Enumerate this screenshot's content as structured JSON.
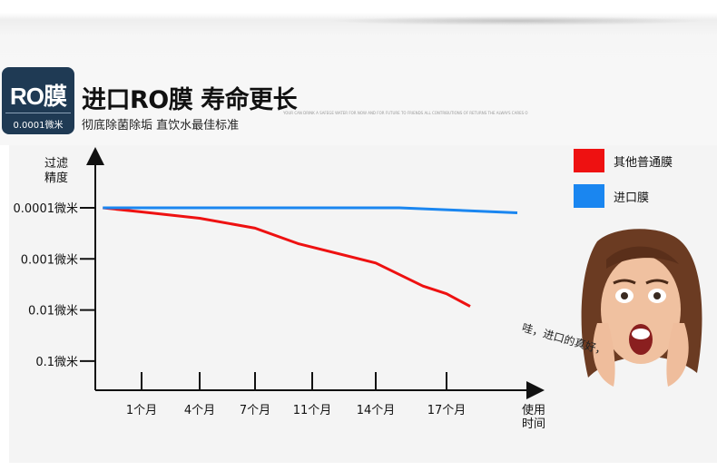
{
  "header": {
    "badge_main": "RO膜",
    "badge_sub": "0.0001微米",
    "title": "进口RO膜 寿命更长",
    "subtitle": "彻底除菌除垢 直饮水最佳标准",
    "tiny_text": "YOUR CAN DRINK A SAFEGE WATER FOR NOW AND FOR FUTURE TO FRIENDS ALL CONTRIBUTIONS OF RETURNS THE ALWAYS CARES O"
  },
  "chart_data": {
    "type": "line",
    "ylabel": "过滤\n精度",
    "xlabel": "使用\n时间",
    "y_ticks": [
      "0.0001微米",
      "0.001微米",
      "0.01微米",
      "0.1微米"
    ],
    "y_tick_values": [
      0.0001,
      0.001,
      0.01,
      0.1
    ],
    "y_scale": "log",
    "y_inverted": true,
    "x_ticks": [
      "1个月",
      "4个月",
      "7个月",
      "11个月",
      "14个月",
      "17个月"
    ],
    "x_tick_values": [
      1,
      4,
      7,
      11,
      14,
      17
    ],
    "xlim": [
      -1,
      20
    ],
    "series": [
      {
        "name": "其他普通膜",
        "color": "#ee1111",
        "x": [
          -1,
          1,
          4,
          7,
          10,
          14,
          16,
          17,
          18
        ],
        "y": [
          0.0001,
          0.00012,
          0.00016,
          0.00025,
          0.0005,
          0.0012,
          0.0034,
          0.0048,
          0.0085
        ]
      },
      {
        "name": "进口膜",
        "color": "#1a86f0",
        "x": [
          -1,
          15,
          20
        ],
        "y": [
          0.0001,
          0.0001,
          0.000125
        ]
      }
    ],
    "legend_position": "top-right",
    "grid": false
  },
  "annotation": "哇，进口的真好，",
  "person_icon": "surprised-woman-photo"
}
